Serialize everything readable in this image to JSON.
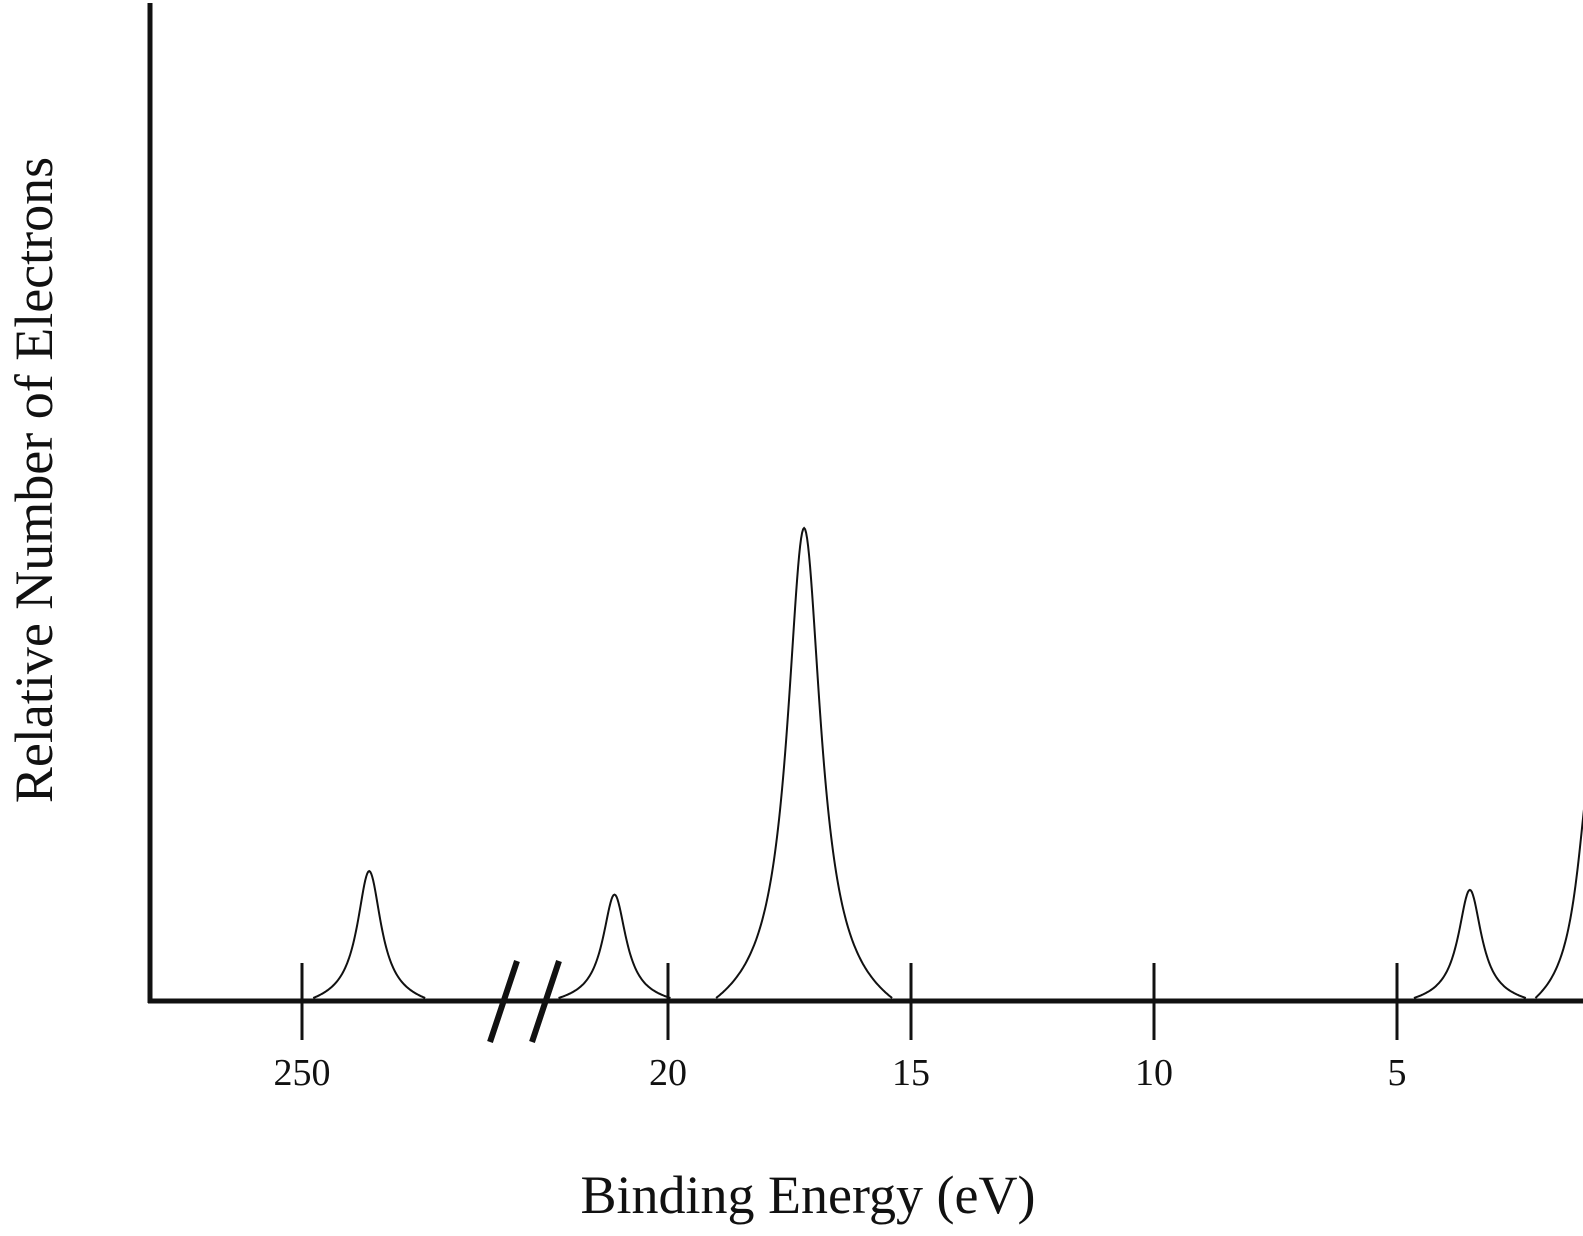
{
  "chart_data": {
    "type": "line",
    "title": "",
    "xlabel": "Binding Energy (eV)",
    "ylabel": "Relative Number of Electrons",
    "x_axis": {
      "direction": "decreasing",
      "broken": true,
      "ticks": [
        {
          "value": 250,
          "label": "250"
        },
        {
          "value": 20,
          "label": "20"
        },
        {
          "value": 15,
          "label": "15"
        },
        {
          "value": 10,
          "label": "10"
        },
        {
          "value": 5,
          "label": "5"
        }
      ]
    },
    "peaks": [
      {
        "binding_energy": 248.6,
        "relative_height": 0.27
      },
      {
        "binding_energy": 21.1,
        "relative_height": 0.22
      },
      {
        "binding_energy": 17.2,
        "relative_height": 1.0
      },
      {
        "binding_energy": 3.5,
        "relative_height": 0.23
      },
      {
        "binding_energy": 1.0,
        "relative_height": 0.49
      }
    ],
    "grid": false,
    "legend": "none"
  }
}
